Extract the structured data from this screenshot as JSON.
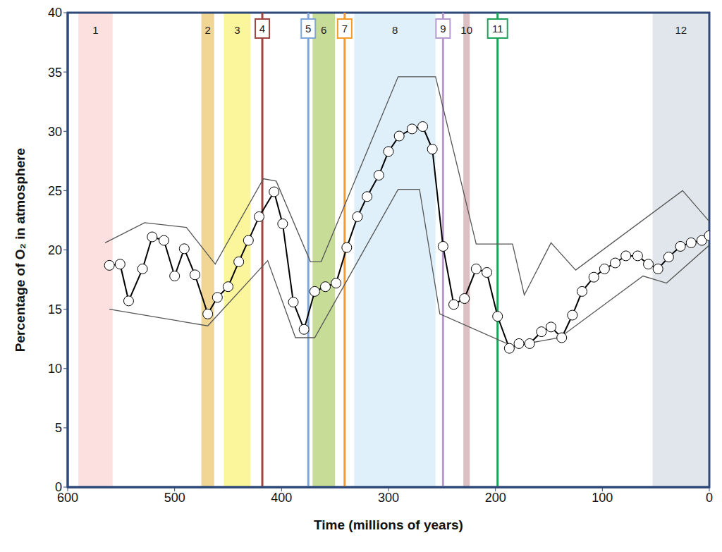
{
  "chart_data": {
    "type": "line",
    "x_label": "Time (millions of years)",
    "y_label": "Percentage of O₂ in atmosphere",
    "xlim": [
      600,
      0
    ],
    "xticks": [
      600,
      500,
      400,
      300,
      200,
      100,
      0
    ],
    "ylim": [
      0,
      40
    ],
    "yticks": [
      0,
      5,
      10,
      15,
      20,
      25,
      30,
      35,
      40
    ],
    "grid": false,
    "series": [
      {
        "color": "#000000",
        "marker": "circle",
        "line_style": "solid",
        "x": [
          561,
          551,
          543,
          530,
          521,
          510,
          500,
          491,
          481,
          469,
          460,
          450,
          440,
          431,
          421,
          407,
          399,
          389,
          379,
          369,
          359,
          349,
          339,
          329,
          320,
          309,
          300,
          290,
          278,
          268,
          259,
          249,
          239,
          229,
          218,
          208,
          198,
          187,
          178,
          168,
          157,
          148,
          138,
          128,
          119,
          108,
          98,
          88,
          78,
          67,
          57,
          48,
          38,
          27,
          17,
          7,
          0
        ],
        "values": [
          18.7,
          18.8,
          15.7,
          18.4,
          21.1,
          20.8,
          17.8,
          20.1,
          17.9,
          14.6,
          16.0,
          16.9,
          19.0,
          20.8,
          22.8,
          24.9,
          22.2,
          15.6,
          13.3,
          16.5,
          16.9,
          17.2,
          20.2,
          22.8,
          24.5,
          26.3,
          28.3,
          29.6,
          30.2,
          30.4,
          28.5,
          20.3,
          15.4,
          15.9,
          18.4,
          18.1,
          14.4,
          11.7,
          12.1,
          12.1,
          13.1,
          13.5,
          12.6,
          14.5,
          16.5,
          17.7,
          18.4,
          18.9,
          19.5,
          19.5,
          18.8,
          18.4,
          19.4,
          20.3,
          20.6,
          20.8,
          21.2
        ]
      },
      {
        "color": "#555555",
        "marker": "none",
        "line_style": "solid",
        "x": [
          565,
          528,
          489,
          462,
          417,
          405,
          373,
          363,
          291,
          256,
          218,
          184,
          173,
          148,
          125,
          25,
          0
        ],
        "values": [
          20.6,
          22.3,
          21.9,
          18.8,
          26.0,
          25.8,
          19.0,
          19.0,
          34.6,
          34.6,
          20.5,
          20.5,
          16.2,
          20.6,
          18.3,
          25.0,
          22.4
        ]
      },
      {
        "color": "#555555",
        "marker": "none",
        "line_style": "solid",
        "x": [
          561,
          469,
          413,
          387,
          369,
          291,
          271,
          252,
          184,
          140,
          62,
          40,
          0
        ],
        "values": [
          15.0,
          13.6,
          19.1,
          12.6,
          12.6,
          25.1,
          25.1,
          14.6,
          11.9,
          12.6,
          17.8,
          17.2,
          20.4
        ]
      }
    ],
    "bands": [
      {
        "label": "1",
        "x": [
          590,
          558
        ],
        "color": "#fbe0df"
      },
      {
        "label": "2",
        "x": [
          475,
          463
        ],
        "color": "#f0d595"
      },
      {
        "label": "3",
        "x": [
          454,
          429
        ],
        "color": "#fbf59b"
      },
      {
        "label": "6",
        "x": [
          371,
          350
        ],
        "color": "#c6dc97"
      },
      {
        "label": "8",
        "x": [
          332,
          256
        ],
        "color": "#dff0fa"
      },
      {
        "label": "10",
        "x": [
          230,
          224
        ],
        "color": "#dcbfc2"
      },
      {
        "label": "12",
        "x": [
          53,
          0
        ],
        "color": "#e0e6eb"
      }
    ],
    "lines": [
      {
        "label": "4",
        "x": 418,
        "color": "#a0453f"
      },
      {
        "label": "5",
        "x": 375,
        "color": "#7fa6d8"
      },
      {
        "label": "7",
        "x": 341,
        "color": "#f39c2a"
      },
      {
        "label": "9",
        "x": 249,
        "color": "#b89ad0"
      },
      {
        "label": "11",
        "x": 198,
        "color": "#1fa35a"
      }
    ]
  }
}
